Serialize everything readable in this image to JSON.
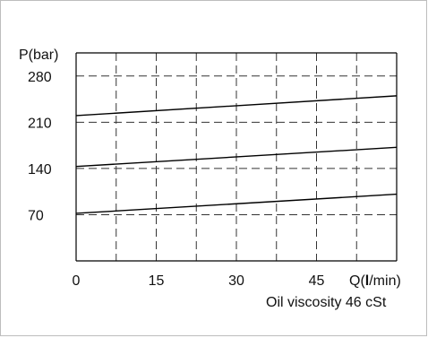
{
  "chart_data": {
    "type": "line",
    "ylabel": "P(bar)",
    "xlabel_prefix": "Q(",
    "xlabel_bold": "l",
    "xlabel_suffix": "/min)",
    "note": "Oil viscosity 46 cSt",
    "xlim": [
      0,
      60
    ],
    "ylim": [
      0,
      315
    ],
    "x_ticks": [
      0,
      15,
      30,
      45
    ],
    "x_tick_labels": [
      "0",
      "15",
      "30",
      "45"
    ],
    "y_ticks": [
      70,
      140,
      210,
      280
    ],
    "y_tick_labels": [
      "70",
      "140",
      "210",
      "280"
    ],
    "x_grid": [
      7.5,
      15,
      22.5,
      30,
      37.5,
      45,
      52.5
    ],
    "y_grid": [
      70,
      140,
      210,
      280
    ],
    "grid": true,
    "grid_style": "dashed",
    "series": [
      {
        "x": [
          0,
          60
        ],
        "y": [
          220,
          250
        ]
      },
      {
        "x": [
          0,
          60
        ],
        "y": [
          143,
          172
        ]
      },
      {
        "x": [
          0,
          60
        ],
        "y": [
          72,
          101
        ]
      }
    ],
    "colors": {
      "line": "#000000",
      "grid": "#333333",
      "axis": "#000000"
    }
  }
}
